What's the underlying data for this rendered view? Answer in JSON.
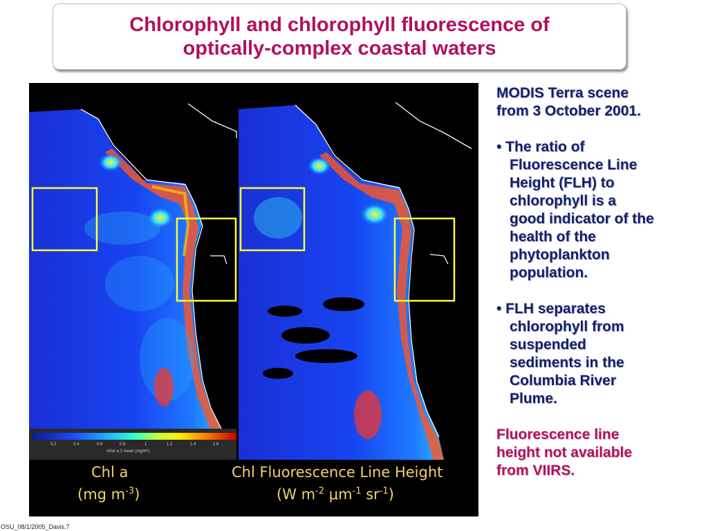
{
  "title": {
    "line1": "Chlorophyll and chlorophyll fluorescence of",
    "line2": "optically-complex coastal waters"
  },
  "sidebar": {
    "intro1": "MODIS Terra scene",
    "intro2": "from 3 October 2001.",
    "bullet1": [
      "• The ratio of",
      "Fluorescence Line",
      "Height (FLH) to",
      "chlorophyll is a",
      "good indicator of the",
      "health of the",
      "phytoplankton",
      "population."
    ],
    "bullet2": [
      "• FLH separates",
      "chlorophyll from",
      "suspended",
      "sediments in the",
      "Columbia River",
      "Plume."
    ],
    "note": [
      "Fluorescence line",
      "height not available",
      "from VIIRS."
    ]
  },
  "figure": {
    "left_caption_1": "Chl a",
    "left_caption_2a": "(mg m",
    "left_caption_2sup": "-3",
    "left_caption_2b": ")",
    "right_caption_1": "Chl Fluorescence Line Height",
    "right_caption_2a": "(W m",
    "right_caption_2sup1": "-2",
    "right_caption_2mid": " μm",
    "right_caption_2sup2": "-1",
    "right_caption_2mid2": " sr",
    "right_caption_2sup3": "-1",
    "right_caption_2b": ")",
    "colorbar_ticks": [
      "0.2",
      "0.4",
      "0.6",
      "0.8",
      "1",
      "1.2",
      "1.4",
      "1.6"
    ],
    "colorbar_label": "chlor a 2 mean (mg/m³)",
    "highlight_color": "#ffff33"
  },
  "footer": "OSU_08/1/2005_Davis.7"
}
